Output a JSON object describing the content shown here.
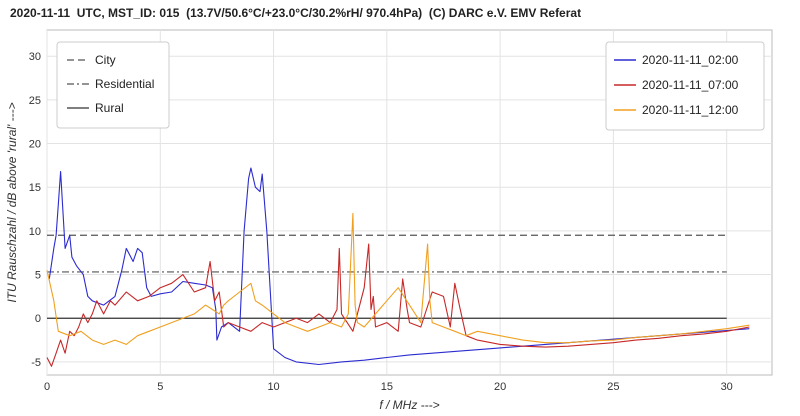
{
  "chart_data": {
    "type": "line",
    "title": "2020-11-11  UTC, MST_ID: 015  (13.7V/50.6°C/+23.0°C/30.2%rH/ 970.4hPa)  (C) DARC e.V. EMV Referat",
    "xlabel": "f  / MHz --->",
    "ylabel": "ITU Rauschzahl / dB above 'rural' --->",
    "xlim": [
      0,
      32
    ],
    "ylim": [
      -6.5,
      33
    ],
    "xticks": [
      0,
      5,
      10,
      15,
      20,
      25,
      30
    ],
    "yticks": [
      -5,
      0,
      5,
      10,
      15,
      20,
      25,
      30
    ],
    "grid": true,
    "reference_lines": [
      {
        "name": "City",
        "y": 9.5,
        "x_end": 30,
        "style": "dashed",
        "color": "#555555"
      },
      {
        "name": "Residential",
        "y": 5.3,
        "x_end": 30,
        "style": "dashdot",
        "color": "#555555"
      },
      {
        "name": "Rural",
        "y": 0,
        "x_end": 30,
        "style": "solid",
        "color": "#333333"
      }
    ],
    "reference_legend_position": "top-left",
    "series_legend_position": "top-right",
    "series": [
      {
        "name": "2020-11-11_02:00",
        "color": "#2b2bd0",
        "x": [
          0.1,
          0.3,
          0.4,
          0.5,
          0.6,
          0.8,
          1.0,
          1.1,
          1.3,
          1.6,
          1.8,
          2.0,
          2.5,
          3.0,
          3.3,
          3.5,
          3.8,
          4.0,
          4.2,
          4.4,
          4.6,
          5.0,
          5.5,
          6.0,
          6.5,
          7.0,
          7.3,
          7.45,
          7.5,
          7.7,
          8.0,
          8.5,
          8.7,
          8.9,
          9.0,
          9.2,
          9.4,
          9.5,
          9.7,
          10.0,
          10.5,
          11.0,
          12.0,
          13.0,
          14.0,
          15.0,
          16.0,
          17.0,
          18.0,
          19.0,
          20.0,
          21.0,
          22.0,
          23.0,
          24.0,
          25.0,
          26.0,
          27.0,
          28.0,
          29.0,
          30.0,
          31.0
        ],
        "values": [
          4.5,
          8.0,
          9.5,
          13.0,
          16.8,
          8.0,
          9.5,
          7.0,
          6.0,
          5.0,
          2.5,
          2.0,
          1.5,
          2.5,
          5.5,
          8.0,
          6.5,
          8.0,
          7.5,
          3.5,
          2.5,
          2.8,
          3.0,
          4.2,
          4.0,
          3.8,
          3.5,
          1.0,
          -2.5,
          -1.0,
          -0.5,
          -1.5,
          10.0,
          16.0,
          17.2,
          15.0,
          14.5,
          16.5,
          10.0,
          -3.5,
          -4.5,
          -5.0,
          -5.3,
          -5.0,
          -4.8,
          -4.5,
          -4.2,
          -4.0,
          -3.8,
          -3.6,
          -3.4,
          -3.2,
          -3.0,
          -2.8,
          -2.6,
          -2.4,
          -2.2,
          -2.0,
          -1.8,
          -1.6,
          -1.4,
          -1.2
        ]
      },
      {
        "name": "2020-11-11_07:00",
        "color": "#c62828",
        "x": [
          0.0,
          0.2,
          0.4,
          0.6,
          0.8,
          1.0,
          1.2,
          1.4,
          1.6,
          1.8,
          2.0,
          2.2,
          2.5,
          2.8,
          3.0,
          3.5,
          4.0,
          4.5,
          5.0,
          5.5,
          6.0,
          6.5,
          7.0,
          7.2,
          7.4,
          7.6,
          7.8,
          8.0,
          8.5,
          9.0,
          9.5,
          10.0,
          10.5,
          11.0,
          11.5,
          12.0,
          12.5,
          12.8,
          12.9,
          13.0,
          13.5,
          14.0,
          14.2,
          14.3,
          14.4,
          14.5,
          15.0,
          15.5,
          15.7,
          15.9,
          16.0,
          16.5,
          17.0,
          17.5,
          17.8,
          18.0,
          18.2,
          18.5,
          19.0,
          20.0,
          21.0,
          22.0,
          23.0,
          24.0,
          25.0,
          26.0,
          27.0,
          28.0,
          29.0,
          30.0,
          31.0
        ],
        "values": [
          -4.5,
          -5.5,
          -4.0,
          -2.5,
          -4.0,
          -1.5,
          -2.0,
          -1.0,
          0.5,
          -0.5,
          0.5,
          2.0,
          0.5,
          2.0,
          1.5,
          3.0,
          2.0,
          2.5,
          3.5,
          4.0,
          5.0,
          3.0,
          3.5,
          6.5,
          2.0,
          3.0,
          -1.0,
          -0.5,
          -1.0,
          -1.5,
          -0.5,
          -1.0,
          -0.5,
          0.0,
          -0.5,
          0.5,
          -0.5,
          1.0,
          8.0,
          0.5,
          -1.5,
          3.5,
          8.5,
          1.0,
          2.5,
          -1.0,
          -0.5,
          -1.5,
          4.5,
          1.0,
          -0.5,
          -1.0,
          3.0,
          2.5,
          -1.0,
          4.0,
          1.5,
          -2.0,
          -2.5,
          -3.0,
          -3.2,
          -3.3,
          -3.2,
          -3.0,
          -2.8,
          -2.5,
          -2.3,
          -2.0,
          -1.8,
          -1.5,
          -1.0
        ]
      },
      {
        "name": "2020-11-11_12:00",
        "color": "#f0a020",
        "x": [
          0.0,
          0.3,
          0.5,
          1.0,
          1.5,
          2.0,
          2.5,
          3.0,
          3.5,
          4.0,
          4.5,
          5.0,
          5.5,
          6.0,
          6.5,
          7.0,
          7.3,
          7.6,
          7.8,
          8.0,
          8.5,
          9.0,
          9.2,
          9.5,
          10.0,
          10.5,
          11.0,
          11.5,
          12.0,
          12.5,
          13.0,
          13.3,
          13.5,
          13.6,
          13.7,
          14.0,
          15.0,
          15.5,
          16.0,
          16.5,
          16.8,
          16.9,
          17.0,
          17.5,
          18.0,
          18.5,
          19.0,
          20.0,
          21.0,
          22.0,
          23.0,
          24.0,
          25.0,
          26.0,
          27.0,
          28.0,
          29.0,
          30.0,
          31.0
        ],
        "values": [
          5.5,
          2.0,
          -1.5,
          -2.0,
          -1.5,
          -2.5,
          -3.0,
          -2.5,
          -3.0,
          -2.0,
          -1.5,
          -1.0,
          -0.5,
          0.0,
          0.5,
          1.5,
          1.0,
          0.5,
          1.5,
          2.0,
          3.0,
          4.0,
          2.0,
          1.5,
          0.5,
          -0.5,
          -1.0,
          -1.5,
          -1.0,
          -0.5,
          -1.0,
          0.5,
          12.0,
          1.5,
          -0.5,
          -1.0,
          2.0,
          3.5,
          1.5,
          -0.5,
          8.5,
          2.0,
          -0.5,
          -1.0,
          -1.5,
          -2.0,
          -1.5,
          -2.0,
          -2.5,
          -2.8,
          -2.8,
          -2.6,
          -2.5,
          -2.2,
          -2.0,
          -1.8,
          -1.5,
          -1.2,
          -0.8
        ]
      }
    ]
  }
}
